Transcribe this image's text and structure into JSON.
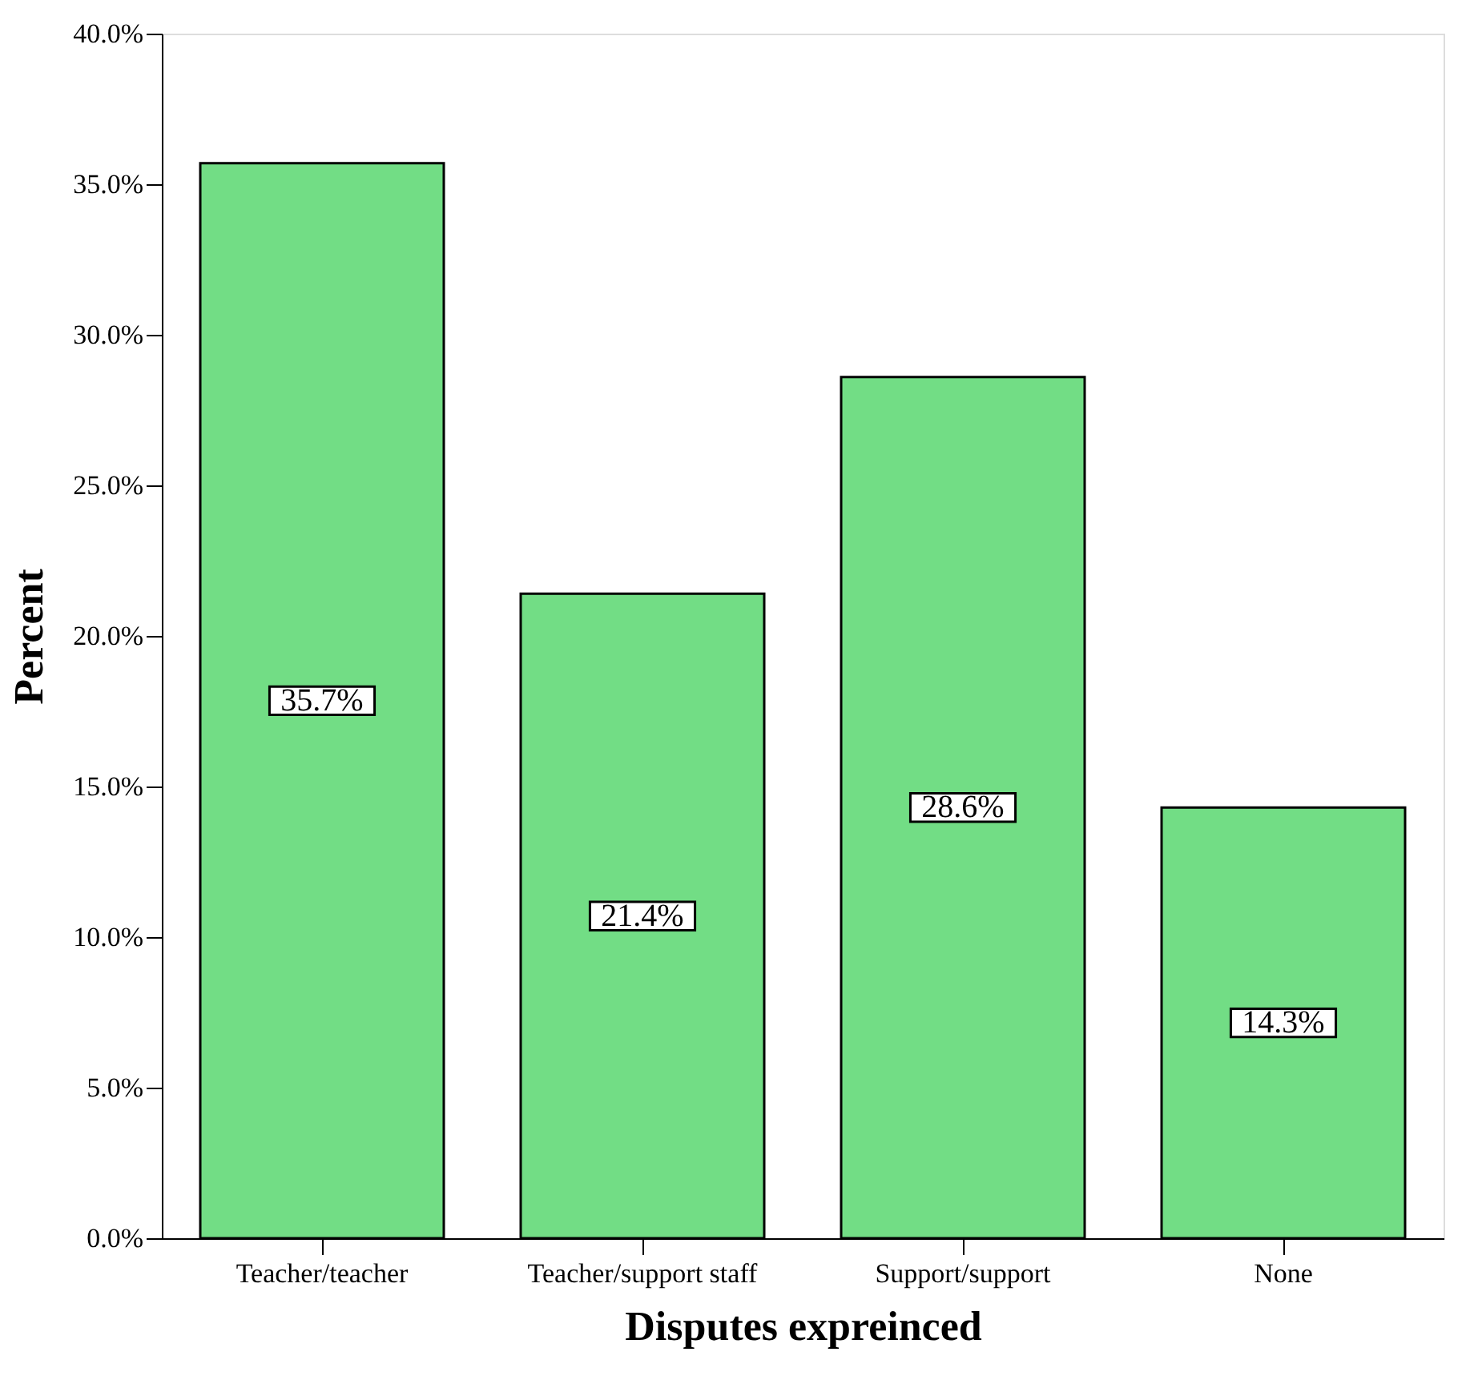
{
  "chart_data": {
    "type": "bar",
    "xlabel": "Disputes expreinced",
    "ylabel": "Percent",
    "categories": [
      "Teacher/teacher",
      "Teacher/support staff",
      "Support/support",
      "None"
    ],
    "values": [
      35.7,
      21.4,
      28.6,
      14.3
    ],
    "value_labels": [
      "35.7%",
      "21.4%",
      "28.6%",
      "14.3%"
    ],
    "color": "#72dd85",
    "ylim": [
      0,
      40
    ],
    "yticks": [
      {
        "value": 0,
        "label": "0.0%"
      },
      {
        "value": 5,
        "label": "5.0%"
      },
      {
        "value": 10,
        "label": "10.0%"
      },
      {
        "value": 15,
        "label": "15.0%"
      },
      {
        "value": 20,
        "label": "20.0%"
      },
      {
        "value": 25,
        "label": "25.0%"
      },
      {
        "value": 30,
        "label": "30.0%"
      },
      {
        "value": 35,
        "label": "35.0%"
      },
      {
        "value": 40,
        "label": "40.0%"
      }
    ],
    "grid": false
  }
}
